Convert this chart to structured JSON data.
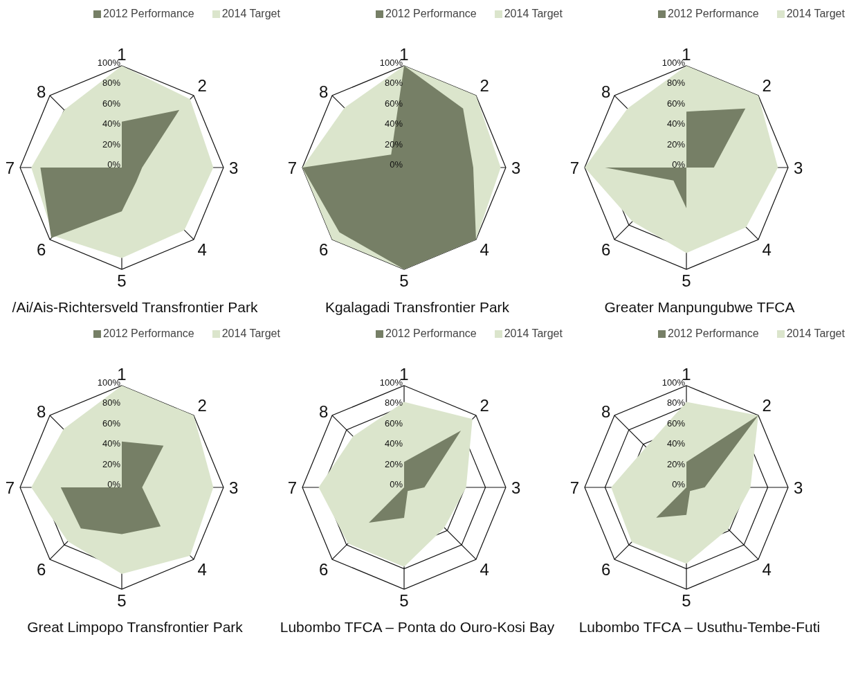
{
  "chart_data": [
    {
      "type": "radar",
      "title": "/Ai/Ais-Richtersveld Transfrontier Park",
      "categories": [
        "1",
        "2",
        "3",
        "4",
        "5",
        "6",
        "7",
        "8"
      ],
      "legend": "top",
      "grid": true,
      "ylim": [
        0,
        100
      ],
      "yticks": [
        {
          "value": 0,
          "label": "0%"
        },
        {
          "value": 20,
          "label": "20%"
        },
        {
          "value": 40,
          "label": "40%"
        },
        {
          "value": 60,
          "label": "60%"
        },
        {
          "value": 80,
          "label": "80%"
        },
        {
          "value": 100,
          "label": "100%"
        }
      ],
      "series": [
        {
          "name": "2012 Performance",
          "color": "#767f66",
          "values": [
            45,
            80,
            20,
            20,
            43,
            98,
            80,
            0
          ]
        },
        {
          "name": "2014 Target",
          "color": "#dbe5cc",
          "values": [
            100,
            95,
            90,
            87,
            89,
            95,
            89,
            80
          ]
        }
      ]
    },
    {
      "type": "radar",
      "title": "Kgalagadi Transfrontier Park",
      "categories": [
        "1",
        "2",
        "3",
        "4",
        "5",
        "6",
        "7",
        "8"
      ],
      "legend": "top",
      "grid": true,
      "ylim": [
        0,
        100
      ],
      "yticks": [
        {
          "value": 0,
          "label": "0%"
        },
        {
          "value": 20,
          "label": "20%"
        },
        {
          "value": 40,
          "label": "40%"
        },
        {
          "value": 60,
          "label": "60%"
        },
        {
          "value": 80,
          "label": "80%"
        },
        {
          "value": 100,
          "label": "100%"
        }
      ],
      "series": [
        {
          "name": "2012 Performance",
          "color": "#767f66",
          "values": [
            100,
            82,
            68,
            100,
            100,
            90,
            100,
            18
          ]
        },
        {
          "name": "2014 Target",
          "color": "#dbe5cc",
          "values": [
            100,
            100,
            95,
            100,
            100,
            100,
            100,
            83
          ]
        }
      ]
    },
    {
      "type": "radar",
      "title": "Greater Manpungubwe TFCA",
      "categories": [
        "1",
        "2",
        "3",
        "4",
        "5",
        "6",
        "7",
        "8"
      ],
      "legend": "top",
      "grid": true,
      "ylim": [
        0,
        100
      ],
      "yticks": [
        {
          "value": 0,
          "label": "0%"
        },
        {
          "value": 20,
          "label": "20%"
        },
        {
          "value": 40,
          "label": "40%"
        },
        {
          "value": 60,
          "label": "60%"
        },
        {
          "value": 80,
          "label": "80%"
        },
        {
          "value": 100,
          "label": "100%"
        }
      ],
      "series": [
        {
          "name": "2012 Performance",
          "color": "#767f66",
          "values": [
            55,
            82,
            27,
            0,
            40,
            18,
            80,
            0
          ]
        },
        {
          "name": "2014 Target",
          "color": "#dbe5cc",
          "values": [
            100,
            100,
            90,
            83,
            84,
            75,
            100,
            82
          ]
        }
      ]
    },
    {
      "type": "radar",
      "title": "Great Limpopo Transfrontier Park",
      "categories": [
        "1",
        "2",
        "3",
        "4",
        "5",
        "6",
        "7",
        "8"
      ],
      "legend": "top",
      "grid": true,
      "ylim": [
        0,
        100
      ],
      "yticks": [
        {
          "value": 0,
          "label": "0%"
        },
        {
          "value": 20,
          "label": "20%"
        },
        {
          "value": 40,
          "label": "40%"
        },
        {
          "value": 60,
          "label": "60%"
        },
        {
          "value": 80,
          "label": "80%"
        },
        {
          "value": 100,
          "label": "100%"
        }
      ],
      "series": [
        {
          "name": "2012 Performance",
          "color": "#767f66",
          "values": [
            45,
            58,
            20,
            54,
            46,
            57,
            60,
            0
          ]
        },
        {
          "name": "2014 Target",
          "color": "#dbe5cc",
          "values": [
            100,
            100,
            90,
            95,
            85,
            75,
            89,
            81
          ]
        }
      ]
    },
    {
      "type": "radar",
      "title": "Lubombo TFCA – Ponta do Ouro-Kosi Bay",
      "categories": [
        "1",
        "2",
        "3",
        "4",
        "5",
        "6",
        "7",
        "8"
      ],
      "legend": "top",
      "grid": true,
      "ylim": [
        0,
        100
      ],
      "yticks": [
        {
          "value": 0,
          "label": "0%"
        },
        {
          "value": 20,
          "label": "20%"
        },
        {
          "value": 40,
          "label": "40%"
        },
        {
          "value": 60,
          "label": "60%"
        },
        {
          "value": 80,
          "label": "80%"
        },
        {
          "value": 100,
          "label": "100%"
        }
      ],
      "series": [
        {
          "name": "2012 Performance",
          "color": "#767f66",
          "values": [
            25,
            79,
            20,
            5,
            30,
            49,
            0,
            0
          ]
        },
        {
          "name": "2014 Target",
          "color": "#dbe5cc",
          "values": [
            84,
            95,
            61,
            56,
            78,
            78,
            84,
            71
          ]
        }
      ]
    },
    {
      "type": "radar",
      "title": "Lubombo TFCA – Usuthu-Tembe-Futi",
      "categories": [
        "1",
        "2",
        "3",
        "4",
        "5",
        "6",
        "7",
        "8"
      ],
      "legend": "top",
      "grid": true,
      "ylim": [
        0,
        100
      ],
      "yticks": [
        {
          "value": 0,
          "label": "0%"
        },
        {
          "value": 20,
          "label": "20%"
        },
        {
          "value": 40,
          "label": "40%"
        },
        {
          "value": 60,
          "label": "60%"
        },
        {
          "value": 80,
          "label": "80%"
        },
        {
          "value": 100,
          "label": "100%"
        }
      ],
      "series": [
        {
          "name": "2012 Performance",
          "color": "#767f66",
          "values": [
            25,
            100,
            18,
            5,
            27,
            42,
            0,
            0
          ]
        },
        {
          "name": "2014 Target",
          "color": "#dbe5cc",
          "values": [
            84,
            100,
            63,
            58,
            75,
            76,
            74,
            56
          ]
        }
      ]
    }
  ]
}
